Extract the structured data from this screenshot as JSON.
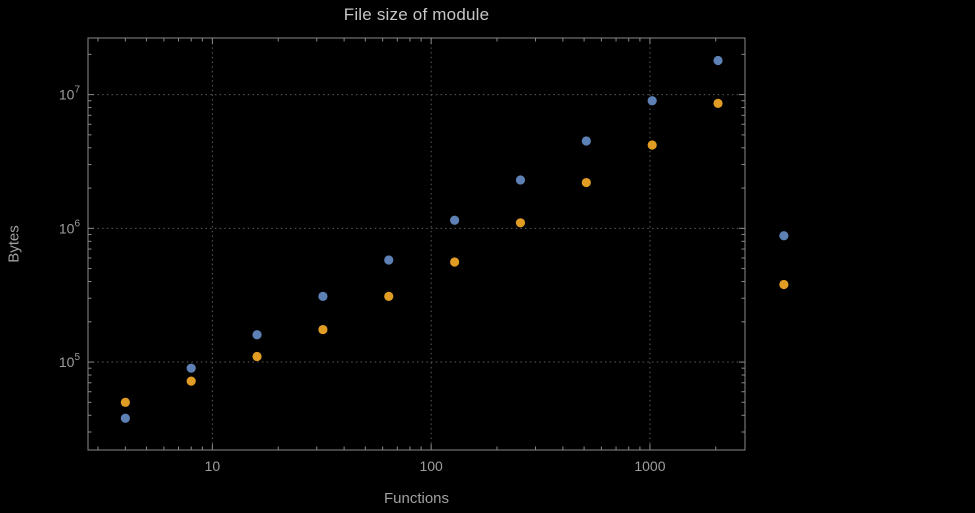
{
  "colors": {
    "background": "#000000",
    "title": "#c6c6c6",
    "axis_label": "#a0a0a0",
    "tick_label": "#9e9e9e",
    "frame": "#8a8a8a",
    "grid": "#5c5c5c",
    "series_blue": "#5e81b5",
    "series_orange": "#e19c24"
  },
  "chart_data": {
    "type": "scatter",
    "title": "File size of module",
    "xlabel": "Functions",
    "ylabel": "Bytes",
    "x_scale": "log",
    "y_scale": "log",
    "xlim": [
      2.7,
      2720
    ],
    "ylim": [
      22000,
      26500000
    ],
    "grid": "dotted",
    "legend": "none",
    "x_ticks": [
      10,
      100,
      1000
    ],
    "x_tick_labels": [
      "10",
      "100",
      "1000"
    ],
    "y_ticks": [
      100000,
      1000000,
      10000000
    ],
    "y_tick_labels": [
      {
        "base": "10",
        "exp": "5"
      },
      {
        "base": "10",
        "exp": "6"
      },
      {
        "base": "10",
        "exp": "7"
      }
    ],
    "series": [
      {
        "name": "series_1",
        "color": "#5e81b5",
        "points": [
          [
            4,
            38000
          ],
          [
            8,
            90000
          ],
          [
            16,
            160000
          ],
          [
            32,
            310000
          ],
          [
            64,
            580000
          ],
          [
            128,
            1150000
          ],
          [
            256,
            2300000
          ],
          [
            512,
            4500000
          ],
          [
            1024,
            9000000
          ],
          [
            2048,
            18000000
          ],
          [
            4096,
            880000
          ]
        ]
      },
      {
        "name": "series_2",
        "color": "#e19c24",
        "points": [
          [
            4,
            50000
          ],
          [
            8,
            72000
          ],
          [
            16,
            110000
          ],
          [
            32,
            175000
          ],
          [
            64,
            310000
          ],
          [
            128,
            560000
          ],
          [
            256,
            1100000
          ],
          [
            512,
            2200000
          ],
          [
            1024,
            4200000
          ],
          [
            2048,
            8600000
          ],
          [
            4096,
            380000
          ]
        ]
      }
    ]
  }
}
